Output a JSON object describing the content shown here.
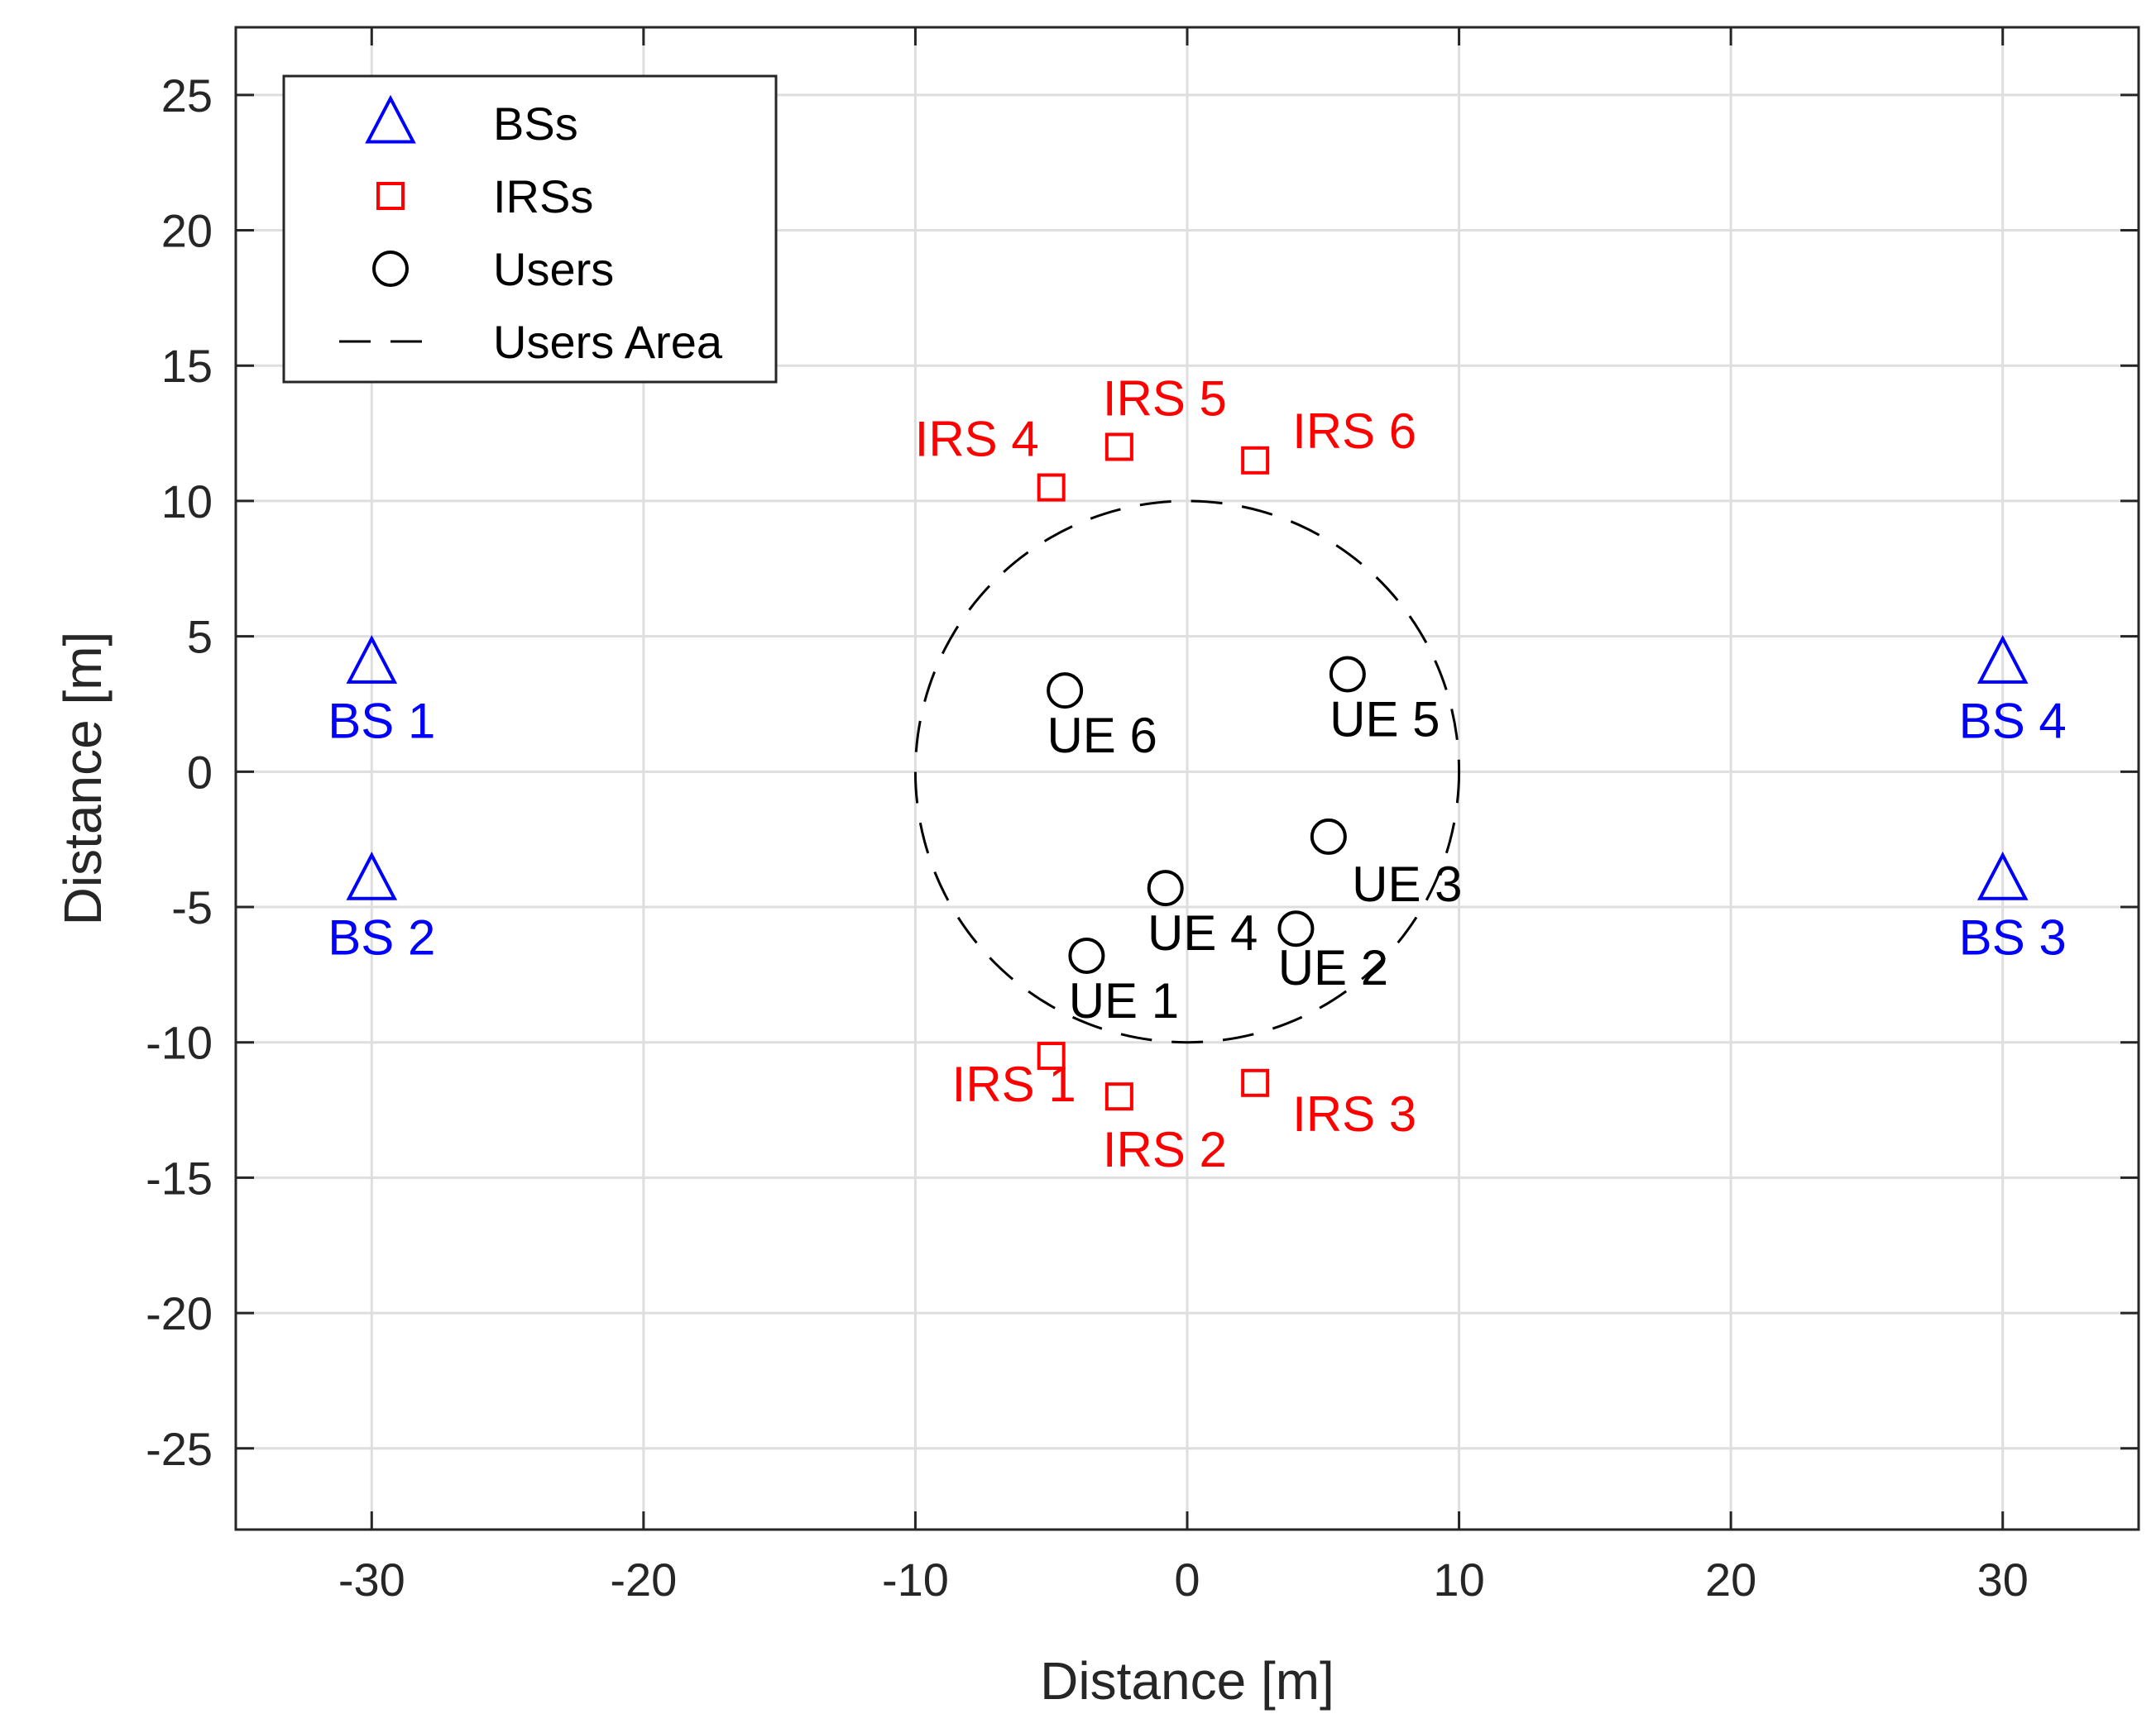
{
  "chart_data": {
    "type": "scatter",
    "title": "",
    "xlabel": "Distance [m]",
    "ylabel": "Distance [m]",
    "xlim": [
      -35,
      35
    ],
    "ylim": [
      -28,
      27.5
    ],
    "xticks": [
      -30,
      -20,
      -10,
      0,
      10,
      20,
      30
    ],
    "yticks": [
      -25,
      -20,
      -15,
      -10,
      -5,
      0,
      5,
      10,
      15,
      20,
      25
    ],
    "grid": true,
    "legend_position": "top-left",
    "legend": [
      {
        "label": "BSs",
        "marker": "triangle",
        "color": "#0000ff"
      },
      {
        "label": "IRSs",
        "marker": "square",
        "color": "#ff0000"
      },
      {
        "label": "Users",
        "marker": "circle",
        "color": "#000000"
      },
      {
        "label": "Users Area",
        "marker": "dashed-line",
        "color": "#000000"
      }
    ],
    "series": [
      {
        "name": "BSs",
        "marker": "triangle",
        "color": "#0000ff",
        "points": [
          {
            "label": "BS 1",
            "x": -30,
            "y": 4
          },
          {
            "label": "BS 2",
            "x": -30,
            "y": -4
          },
          {
            "label": "BS 3",
            "x": 30,
            "y": -4
          },
          {
            "label": "BS 4",
            "x": 30,
            "y": 4
          }
        ]
      },
      {
        "name": "IRSs",
        "marker": "square",
        "color": "#ff0000",
        "points": [
          {
            "label": "IRS 1",
            "x": -5,
            "y": -10.5
          },
          {
            "label": "IRS 2",
            "x": -2.5,
            "y": -12
          },
          {
            "label": "IRS 3",
            "x": 2.5,
            "y": -11.5
          },
          {
            "label": "IRS 4",
            "x": -5,
            "y": 10.5
          },
          {
            "label": "IRS 5",
            "x": -2.5,
            "y": 12
          },
          {
            "label": "IRS 6",
            "x": 2.5,
            "y": 11.5
          }
        ]
      },
      {
        "name": "Users",
        "marker": "circle",
        "color": "#000000",
        "points": [
          {
            "label": "UE 1",
            "x": -3.7,
            "y": -6.8
          },
          {
            "label": "UE 2",
            "x": 4.0,
            "y": -5.8
          },
          {
            "label": "UE 3",
            "x": 5.2,
            "y": -2.4
          },
          {
            "label": "UE 4",
            "x": -0.8,
            "y": -4.3
          },
          {
            "label": "UE 5",
            "x": 5.9,
            "y": 3.6
          },
          {
            "label": "UE 6",
            "x": -4.5,
            "y": 3.0
          }
        ]
      }
    ],
    "users_area": {
      "name": "Users Area",
      "center": [
        0,
        0
      ],
      "radius": 10,
      "style": "dashed",
      "color": "#000000"
    }
  }
}
